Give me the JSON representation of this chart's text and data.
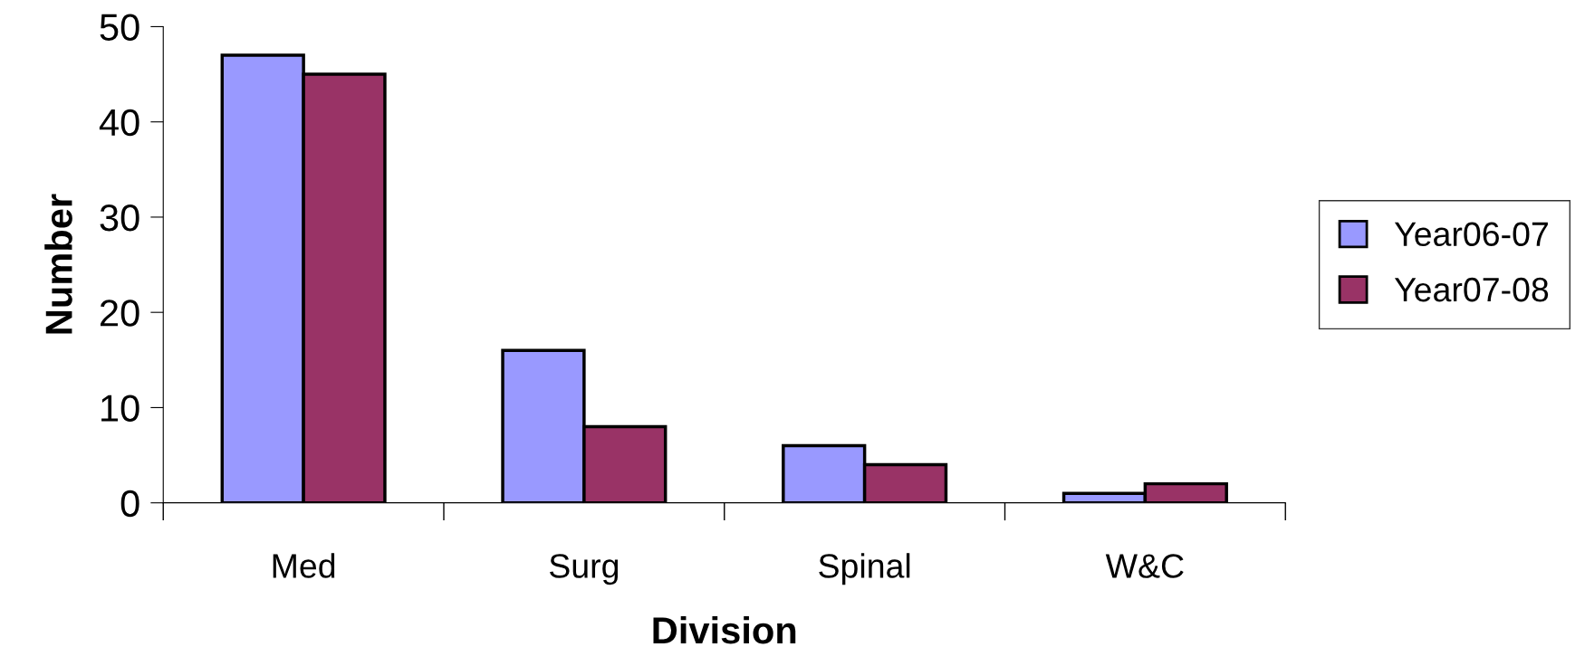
{
  "chart_data": {
    "type": "bar",
    "xlabel": "Division",
    "ylabel": "Number",
    "categories": [
      "Med",
      "Surg",
      "Spinal",
      "W&C"
    ],
    "series": [
      {
        "name": "Year06-07",
        "color": "#9999ff",
        "values": [
          47,
          16,
          6,
          1
        ]
      },
      {
        "name": "Year07-08",
        "color": "#993366",
        "values": [
          45,
          8,
          4,
          2
        ]
      }
    ],
    "ylim": [
      0,
      50
    ],
    "yticks": [
      0,
      10,
      20,
      30,
      40,
      50
    ],
    "grid": false,
    "legend": "right"
  }
}
